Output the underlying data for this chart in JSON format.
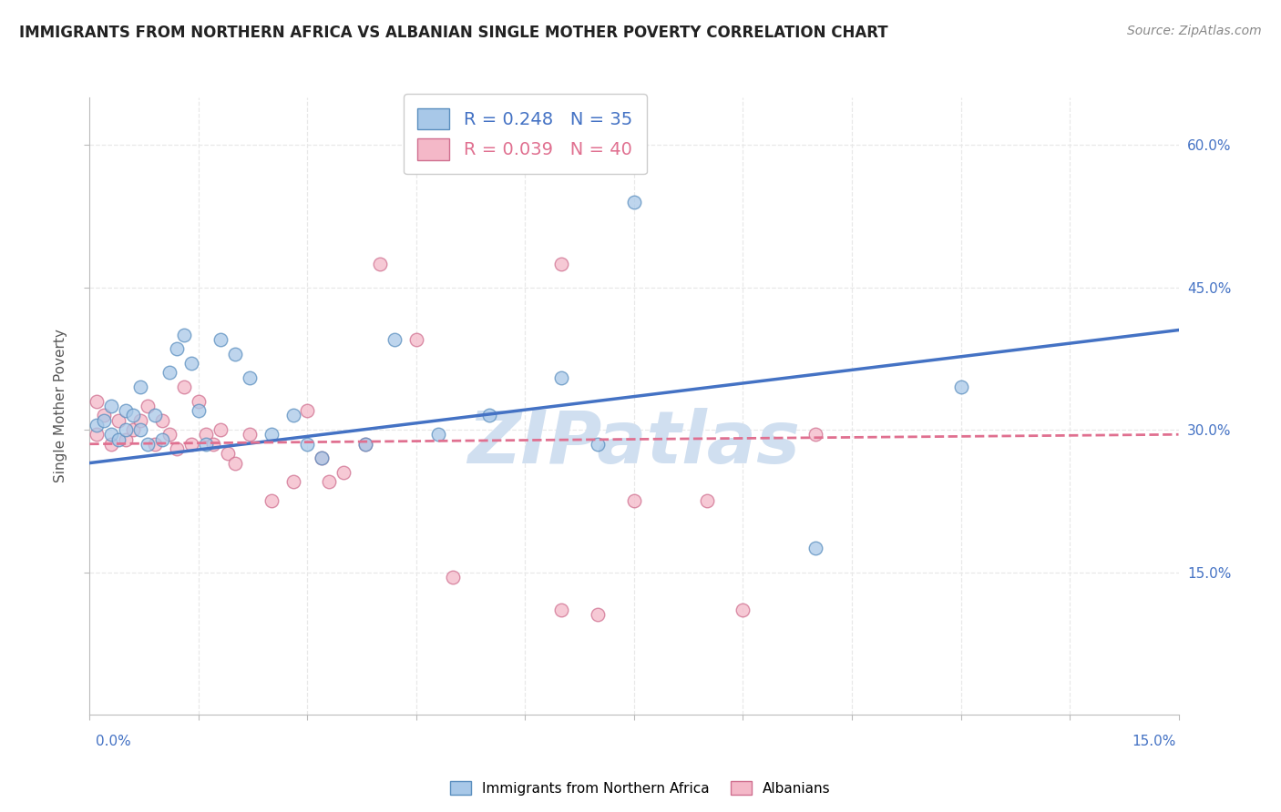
{
  "title": "IMMIGRANTS FROM NORTHERN AFRICA VS ALBANIAN SINGLE MOTHER POVERTY CORRELATION CHART",
  "source": "Source: ZipAtlas.com",
  "ylabel": "Single Mother Poverty",
  "legend_blue_label": "Immigrants from Northern Africa",
  "legend_pink_label": "Albanians",
  "legend_blue_R": "R = 0.248",
  "legend_blue_N": "N = 35",
  "legend_pink_R": "R = 0.039",
  "legend_pink_N": "N = 40",
  "blue_color": "#a8c8e8",
  "blue_edge": "#5b8fbf",
  "pink_color": "#f4b8c8",
  "pink_edge": "#d07090",
  "blue_line_color": "#4472c4",
  "pink_line_color": "#e07090",
  "watermark_color": "#d0dff0",
  "background_color": "#ffffff",
  "grid_color": "#e8e8e8",
  "blue_scatter_x": [
    0.001,
    0.002,
    0.003,
    0.003,
    0.004,
    0.005,
    0.005,
    0.006,
    0.007,
    0.007,
    0.008,
    0.009,
    0.01,
    0.011,
    0.012,
    0.013,
    0.014,
    0.015,
    0.016,
    0.018,
    0.02,
    0.022,
    0.025,
    0.028,
    0.03,
    0.032,
    0.038,
    0.042,
    0.048,
    0.055,
    0.065,
    0.07,
    0.075,
    0.1,
    0.12
  ],
  "blue_scatter_y": [
    0.305,
    0.31,
    0.295,
    0.325,
    0.29,
    0.32,
    0.3,
    0.315,
    0.345,
    0.3,
    0.285,
    0.315,
    0.29,
    0.36,
    0.385,
    0.4,
    0.37,
    0.32,
    0.285,
    0.395,
    0.38,
    0.355,
    0.295,
    0.315,
    0.285,
    0.27,
    0.285,
    0.395,
    0.295,
    0.315,
    0.355,
    0.285,
    0.54,
    0.175,
    0.345
  ],
  "pink_scatter_x": [
    0.001,
    0.001,
    0.002,
    0.003,
    0.004,
    0.005,
    0.006,
    0.007,
    0.008,
    0.009,
    0.01,
    0.011,
    0.012,
    0.013,
    0.014,
    0.015,
    0.016,
    0.017,
    0.018,
    0.019,
    0.02,
    0.022,
    0.025,
    0.028,
    0.03,
    0.032,
    0.033,
    0.035,
    0.038,
    0.04,
    0.045,
    0.05,
    0.055,
    0.065,
    0.065,
    0.07,
    0.075,
    0.085,
    0.09,
    0.1
  ],
  "pink_scatter_y": [
    0.33,
    0.295,
    0.315,
    0.285,
    0.31,
    0.29,
    0.3,
    0.31,
    0.325,
    0.285,
    0.31,
    0.295,
    0.28,
    0.345,
    0.285,
    0.33,
    0.295,
    0.285,
    0.3,
    0.275,
    0.265,
    0.295,
    0.225,
    0.245,
    0.32,
    0.27,
    0.245,
    0.255,
    0.285,
    0.475,
    0.395,
    0.145,
    0.6,
    0.11,
    0.475,
    0.105,
    0.225,
    0.225,
    0.11,
    0.295
  ],
  "xlim": [
    0.0,
    0.15
  ],
  "ylim": [
    0.0,
    0.65
  ],
  "blue_trend_x": [
    0.0,
    0.15
  ],
  "blue_trend_y": [
    0.265,
    0.405
  ],
  "pink_trend_x": [
    0.0,
    0.15
  ],
  "pink_trend_y": [
    0.285,
    0.295
  ],
  "marker_size": 110,
  "marker_alpha": 0.75,
  "title_fontsize": 12,
  "source_fontsize": 10,
  "tick_label_fontsize": 11,
  "legend_fontsize": 14,
  "ylabel_fontsize": 11
}
